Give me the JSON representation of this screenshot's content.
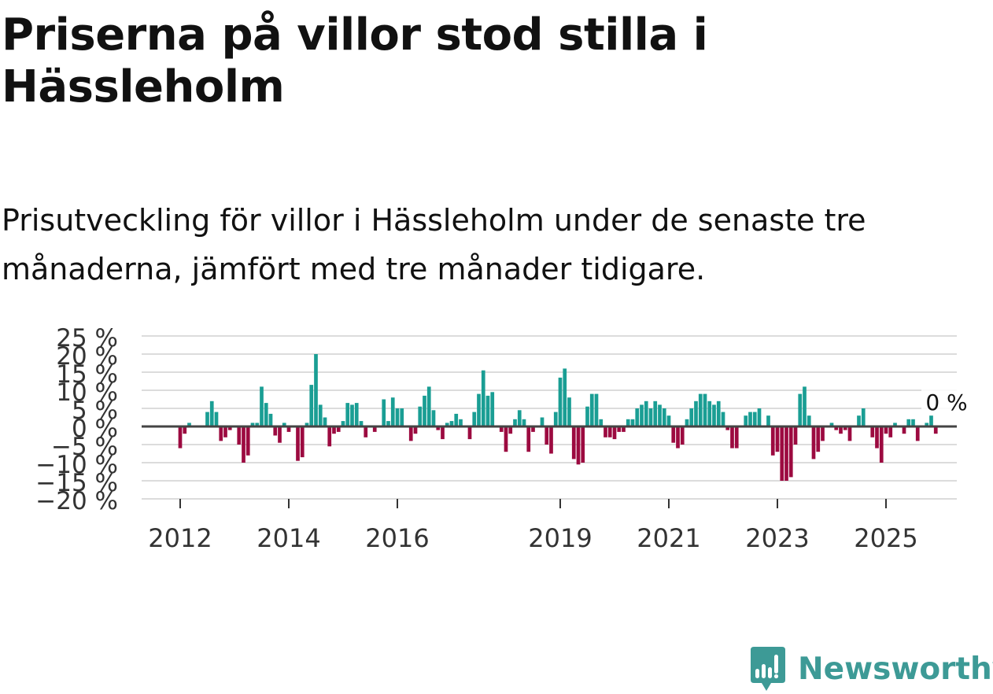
{
  "header": {
    "title": "Priserna på villor stod stilla i Hässleholm",
    "subtitle": "Prisutveckling för villor i Hässleholm under de senaste tre månaderna, jämfört med tre månader tidigare."
  },
  "brand": {
    "name": "Newsworthy"
  },
  "colors": {
    "positive": "#1a9e94",
    "negative": "#9c0a40",
    "grid": "#dcdcdc",
    "zero_line": "#444444",
    "logo": "#3d9a96"
  },
  "chart_data": {
    "type": "bar",
    "title": "Priserna på villor stod stilla i Hässleholm",
    "xlabel": "",
    "ylabel": "",
    "unit": "%",
    "ylim": [
      -20,
      25
    ],
    "y_ticks": [
      25,
      20,
      15,
      10,
      5,
      0,
      -5,
      -10,
      -15,
      -20
    ],
    "y_tick_labels": [
      "25 %",
      "20 %",
      "15 %",
      "10 %",
      "5 %",
      "0 %",
      "−5 %",
      "−10 %",
      "−15 %",
      "−20 %"
    ],
    "x_ticks": [
      {
        "label": "2012",
        "year": 2012
      },
      {
        "label": "2014",
        "year": 2014
      },
      {
        "label": "2016",
        "year": 2016
      },
      {
        "label": "2019",
        "year": 2019
      },
      {
        "label": "2021",
        "year": 2021
      },
      {
        "label": "2023",
        "year": 2023
      },
      {
        "label": "2025",
        "year": 2025
      }
    ],
    "start": "2012-01",
    "frequency": "monthly",
    "values": [
      -6,
      -2,
      1,
      0,
      0,
      0,
      4,
      7,
      4,
      -4,
      -3,
      -1,
      0,
      -5,
      -10,
      -8,
      1,
      1,
      11,
      6.5,
      3.5,
      -2.5,
      -4.5,
      1,
      -1.5,
      0,
      -9.5,
      -8.5,
      1,
      11.5,
      20,
      6,
      2.5,
      -5.5,
      -2,
      -1.5,
      1.5,
      6.5,
      6,
      6.5,
      1.5,
      -3,
      0,
      -1.5,
      0,
      7.5,
      1.5,
      8,
      5,
      5,
      0,
      -4,
      -2,
      5.5,
      8.5,
      11,
      4.5,
      -1,
      -3.5,
      1,
      1.5,
      3.5,
      2,
      0,
      -3.5,
      4,
      9,
      15.5,
      8.5,
      9.5,
      0,
      -1.5,
      -7,
      -2,
      2,
      4.5,
      2,
      -7,
      -1.5,
      0,
      2.5,
      -5,
      -7.5,
      4,
      13.5,
      16,
      8,
      -9,
      -10.5,
      -10,
      5.5,
      9,
      9,
      2,
      -3,
      -3,
      -3.5,
      -1.5,
      -1.5,
      2,
      2,
      5,
      6,
      7,
      5,
      7,
      6,
      5,
      3,
      -4.5,
      -6,
      -5,
      2,
      5,
      7,
      9,
      9,
      7,
      6,
      7,
      4,
      -1,
      -6,
      -6,
      0,
      3,
      4,
      4,
      5,
      0,
      3,
      -8,
      -7,
      -15,
      -15,
      -14,
      -5,
      9,
      11,
      3,
      -9,
      -7,
      -4,
      0,
      1,
      -1,
      -2,
      -1,
      -4,
      0,
      3,
      5,
      0,
      -3,
      -6,
      -10,
      -2,
      -3,
      1,
      0,
      -2,
      2,
      2,
      -4,
      0,
      1,
      3,
      -2,
      0
    ],
    "last_value_label": "0 %",
    "last_value": 0
  }
}
